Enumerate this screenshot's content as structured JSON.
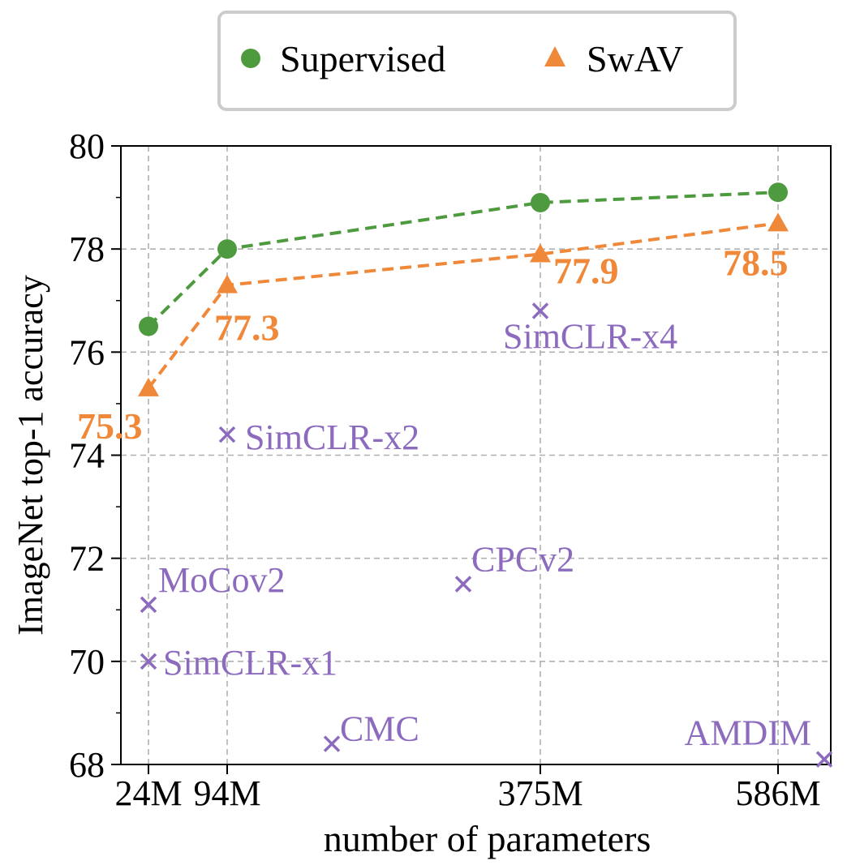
{
  "chart_data": {
    "type": "scatter",
    "xlabel": "number of parameters",
    "ylabel": "ImageNet top-1 accuracy",
    "ylim": [
      68,
      80
    ],
    "yticks": [
      68,
      70,
      72,
      74,
      76,
      78,
      80
    ],
    "x_tick_labels": [
      "24M",
      "94M",
      "375M",
      "586M"
    ],
    "grid": true,
    "legend": {
      "placement": "top-center, above plot",
      "entries": [
        "Supervised",
        "SwAV"
      ]
    },
    "series": [
      {
        "name": "Supervised",
        "marker": "circle",
        "line": "dashed",
        "color": "#4e9a3e",
        "points": [
          {
            "x": "24M",
            "y": 76.5
          },
          {
            "x": "94M",
            "y": 78.0
          },
          {
            "x": "375M",
            "y": 78.9
          },
          {
            "x": "586M",
            "y": 79.1
          }
        ]
      },
      {
        "name": "SwAV",
        "marker": "triangle",
        "line": "dashed",
        "color": "#f0883a",
        "points": [
          {
            "x": "24M",
            "y": 75.3,
            "label": "75.3"
          },
          {
            "x": "94M",
            "y": 77.3,
            "label": "77.3"
          },
          {
            "x": "375M",
            "y": 77.9,
            "label": "77.9"
          },
          {
            "x": "586M",
            "y": 78.5,
            "label": "78.5"
          }
        ]
      }
    ],
    "other_methods": {
      "marker": "x",
      "color": "#8c6bbf",
      "points": [
        {
          "label": "SimCLR-x4",
          "params": "375M",
          "y": 76.8
        },
        {
          "label": "SimCLR-x2",
          "params": "94M",
          "y": 74.4
        },
        {
          "label": "MoCov2",
          "params": "24M",
          "y": 71.1
        },
        {
          "label": "SimCLR-x1",
          "params": "24M",
          "y": 70.0
        },
        {
          "label": "CPCv2",
          "params": "~303M",
          "y": 71.5
        },
        {
          "label": "CMC",
          "params": "~188M",
          "y": 68.4
        },
        {
          "label": "AMDIM",
          "params": "~626M",
          "y": 68.1
        }
      ]
    }
  }
}
